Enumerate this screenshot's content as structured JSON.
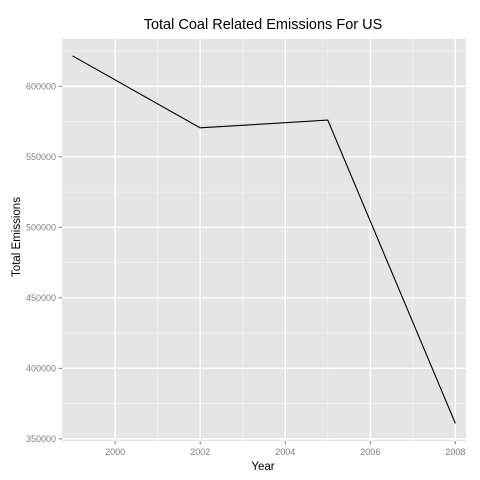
{
  "chart_data": {
    "type": "line",
    "title": "Total Coal Related Emissions For US",
    "xlabel": "Year",
    "ylabel": "Total Emissions",
    "xlim": [
      1998.75,
      2008.25
    ],
    "ylim": [
      348500,
      633500
    ],
    "x_ticks": [
      2000,
      2002,
      2004,
      2006,
      2008
    ],
    "x_tick_labels": [
      "2000",
      "2002",
      "2004",
      "2006",
      "2008"
    ],
    "y_ticks": [
      350000,
      400000,
      450000,
      500000,
      550000,
      600000
    ],
    "y_tick_labels": [
      "350000",
      "400000",
      "450000",
      "500000",
      "550000",
      "600000"
    ],
    "grid": true,
    "legend": "none",
    "series": [
      {
        "x": [
          1999,
          2002,
          2005,
          2008
        ],
        "y": [
          621500,
          570500,
          576000,
          361000
        ]
      }
    ],
    "colors": {
      "panel": "#e5e5e5",
      "grid_major": "#ffffff",
      "grid_minor": "#f2f2f2",
      "line": "#000000"
    }
  }
}
